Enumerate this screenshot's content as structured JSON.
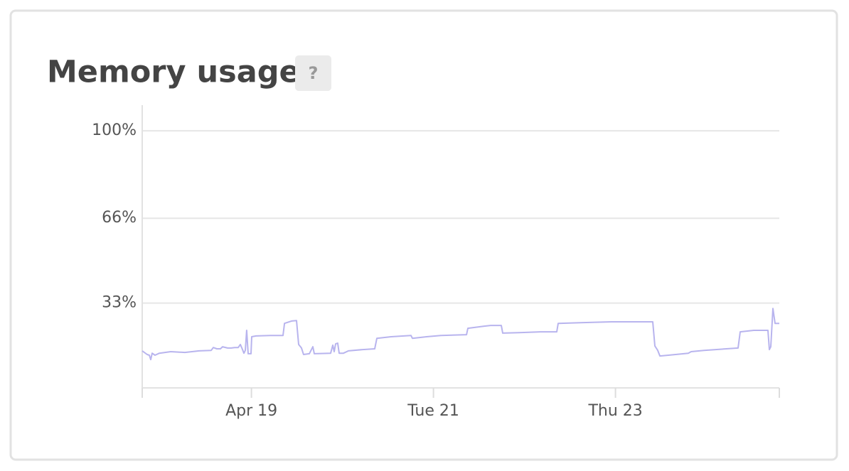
{
  "chart_data": {
    "type": "line",
    "title": "Memory usage",
    "help_label": "?",
    "color": "#b8b4ee",
    "x": [
      17.8,
      17.855,
      17.878,
      17.894,
      17.909,
      17.941,
      17.988,
      18.113,
      18.269,
      18.425,
      18.558,
      18.581,
      18.62,
      18.659,
      18.683,
      18.738,
      18.777,
      18.816,
      18.855,
      18.878,
      18.902,
      18.917,
      18.933,
      18.948,
      18.964,
      18.995,
      19.003,
      19.05,
      19.206,
      19.347,
      19.363,
      19.441,
      19.495,
      19.519,
      19.55,
      19.573,
      19.636,
      19.675,
      19.691,
      19.87,
      19.894,
      19.909,
      19.925,
      19.948,
      19.964,
      20.011,
      20.066,
      20.222,
      20.355,
      20.378,
      20.534,
      20.753,
      20.769,
      20.925,
      21.081,
      21.363,
      21.378,
      21.55,
      21.628,
      21.745,
      21.761,
      21.941,
      22.175,
      22.355,
      22.37,
      22.644,
      22.956,
      23.409,
      23.433,
      23.464,
      23.488,
      23.581,
      23.8,
      23.831,
      23.972,
      24.347,
      24.37,
      24.519,
      24.675,
      24.691,
      24.706,
      24.73,
      24.753,
      24.8
    ],
    "values": [
      14.4,
      13.0,
      12.7,
      11.0,
      13.5,
      12.7,
      13.5,
      14.1,
      13.8,
      14.4,
      14.6,
      15.7,
      15.2,
      15.2,
      16.0,
      15.5,
      15.5,
      15.7,
      15.7,
      16.9,
      14.9,
      13.5,
      14.6,
      22.4,
      13.3,
      13.3,
      19.9,
      20.2,
      20.4,
      20.4,
      25.1,
      26.0,
      26.2,
      16.9,
      15.5,
      13.0,
      13.3,
      16.0,
      13.3,
      13.5,
      16.6,
      14.1,
      17.1,
      17.4,
      13.5,
      13.5,
      14.4,
      14.9,
      15.2,
      19.3,
      19.9,
      20.4,
      19.3,
      19.9,
      20.4,
      20.7,
      23.2,
      24.0,
      24.3,
      24.3,
      21.3,
      21.5,
      21.8,
      21.8,
      25.1,
      25.4,
      25.7,
      25.7,
      16.3,
      14.6,
      12.4,
      12.7,
      13.5,
      14.1,
      14.6,
      15.5,
      21.8,
      22.4,
      22.4,
      14.9,
      16.0,
      30.9,
      25.1,
      25.1
    ],
    "xlim": [
      17.8,
      24.8
    ],
    "xticks": [
      {
        "value": 19,
        "label": "Apr 19"
      },
      {
        "value": 21,
        "label": "Tue 21"
      },
      {
        "value": 23,
        "label": "Thu 23"
      }
    ],
    "ylim": [
      0,
      110
    ],
    "yticks": [
      {
        "value": 33,
        "label": "33%"
      },
      {
        "value": 66,
        "label": "66%"
      },
      {
        "value": 100,
        "label": "100%"
      }
    ],
    "grid": true
  }
}
